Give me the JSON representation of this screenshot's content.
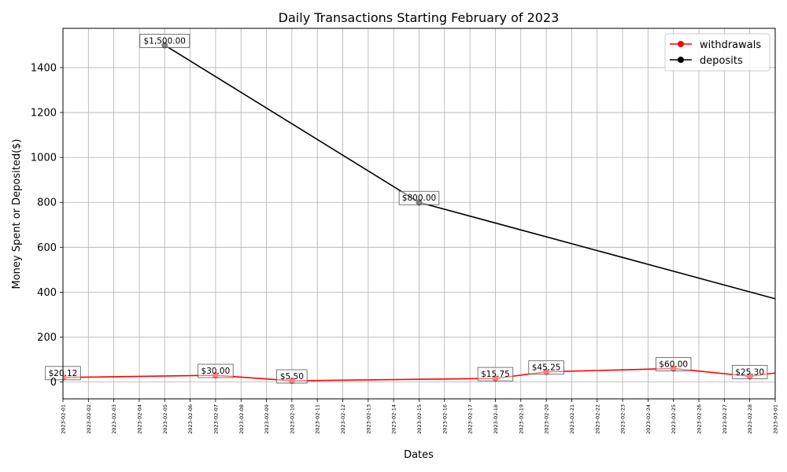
{
  "chart_data": {
    "type": "line",
    "title": "Daily Transactions Starting February of 2023",
    "xlabel": "Dates",
    "ylabel": "Money Spent or Deposited($)",
    "x_ticks": [
      "2023-02-01",
      "2023-02-02",
      "2023-02-03",
      "2023-02-04",
      "2023-02-05",
      "2023-02-06",
      "2023-02-07",
      "2023-02-08",
      "2023-02-09",
      "2023-02-10",
      "2023-02-11",
      "2023-02-12",
      "2023-02-13",
      "2023-02-14",
      "2023-02-15",
      "2023-02-16",
      "2023-02-17",
      "2023-02-18",
      "2023-02-19",
      "2023-02-20",
      "2023-02-21",
      "2023-02-22",
      "2023-02-23",
      "2023-02-24",
      "2023-02-25",
      "2023-02-26",
      "2023-02-27",
      "2023-02-28",
      "2023-03-01"
    ],
    "xlim": [
      "2023-02-01",
      "2023-03-01"
    ],
    "y_ticks": [
      0,
      200,
      400,
      600,
      800,
      1000,
      1200,
      1400
    ],
    "ylim": [
      -75,
      1575
    ],
    "grid": true,
    "legend_position": "top-right",
    "series": [
      {
        "name": "withdrawals",
        "color": "#ff0000",
        "points": [
          {
            "x": "2023-01-31",
            "y": 20
          },
          {
            "x": "2023-02-01",
            "y": 20.12
          },
          {
            "x": "2023-02-07",
            "y": 30.0
          },
          {
            "x": "2023-02-10",
            "y": 5.5
          },
          {
            "x": "2023-02-18",
            "y": 15.75
          },
          {
            "x": "2023-02-20",
            "y": 45.25
          },
          {
            "x": "2023-02-25",
            "y": 60.0
          },
          {
            "x": "2023-02-28",
            "y": 25.3
          },
          {
            "x": "2023-03-02",
            "y": 55
          }
        ],
        "labeled": [
          {
            "x": "2023-02-01",
            "y": 20.12,
            "label": "$20.12"
          },
          {
            "x": "2023-02-07",
            "y": 30.0,
            "label": "$30.00"
          },
          {
            "x": "2023-02-10",
            "y": 5.5,
            "label": "$5.50"
          },
          {
            "x": "2023-02-18",
            "y": 15.75,
            "label": "$15.75"
          },
          {
            "x": "2023-02-20",
            "y": 45.25,
            "label": "$45.25"
          },
          {
            "x": "2023-02-25",
            "y": 60.0,
            "label": "$60.00"
          },
          {
            "x": "2023-02-28",
            "y": 25.3,
            "label": "$25.30"
          }
        ]
      },
      {
        "name": "deposits",
        "color": "#000000",
        "points": [
          {
            "x": "2023-02-05",
            "y": 1500
          },
          {
            "x": "2023-02-15",
            "y": 800
          },
          {
            "x": "2023-03-02",
            "y": 340
          }
        ],
        "labeled": [
          {
            "x": "2023-02-05",
            "y": 1500,
            "label": "$1,500.00"
          },
          {
            "x": "2023-02-15",
            "y": 800,
            "label": "$800.00"
          }
        ]
      }
    ]
  }
}
